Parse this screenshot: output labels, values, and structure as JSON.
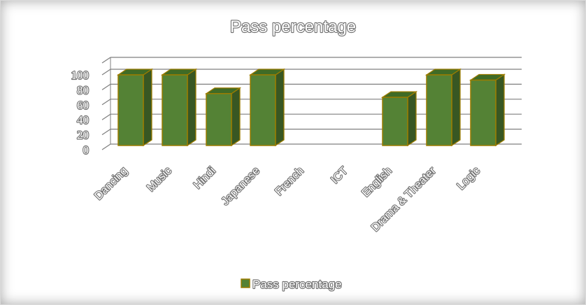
{
  "chart_data": {
    "type": "bar",
    "title": "Pass percentage",
    "xlabel": "",
    "ylabel": "",
    "categories": [
      "Dancing",
      "Music",
      "Hindi",
      "Japanese",
      "French",
      "ICT",
      "English",
      "Drama & Theater",
      "Logic"
    ],
    "series": [
      {
        "name": "Pass percentage",
        "values": [
          100,
          100,
          75,
          100,
          null,
          null,
          70,
          100,
          93
        ]
      }
    ],
    "ylim": [
      0,
      100
    ],
    "yticks": [
      0,
      20,
      40,
      60,
      80,
      100
    ],
    "grid": true,
    "legend": "bottom",
    "style": "3d-column",
    "colors": {
      "bar_front": "#548235",
      "bar_side": "#385723",
      "bar_top": "#3f6b26",
      "bar_edge": "#9c7c00",
      "gridline": "#7f7f7f"
    }
  }
}
